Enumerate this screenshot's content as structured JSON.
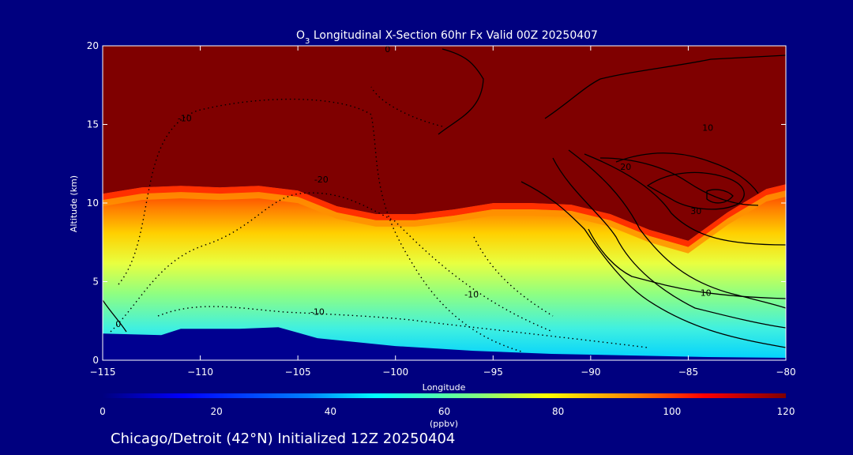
{
  "chart_data": {
    "type": "heatmap",
    "title_prefix": "O",
    "title_subscript": "3",
    "title_rest": " Longitudinal X-Section 60hr  Fx Valid 00Z 20250407",
    "xlabel": "Longitude",
    "ylabel": "Altitude (km)",
    "xlim": [
      -115,
      -80
    ],
    "ylim": [
      0,
      20
    ],
    "x_ticks": [
      -115,
      -110,
      -105,
      -100,
      -95,
      -90,
      -85,
      -80
    ],
    "x_tick_labels": [
      "−115",
      "−110",
      "−105",
      "−100",
      "−95",
      "−90",
      "−85",
      "−80"
    ],
    "y_ticks": [
      0,
      5,
      10,
      15,
      20
    ],
    "y_tick_labels": [
      "0",
      "5",
      "10",
      "15",
      "20"
    ],
    "colorbar": {
      "label": "(ppbv)",
      "range": [
        0,
        120
      ],
      "ticks": [
        0,
        20,
        40,
        60,
        80,
        100,
        120
      ],
      "tick_labels": [
        "0",
        "20",
        "40",
        "60",
        "80",
        "100",
        "120"
      ]
    },
    "colormap": [
      "#00007f",
      "#0000ff",
      "#0080ff",
      "#00ffff",
      "#80ff80",
      "#ffff00",
      "#ff8000",
      "#ff0000",
      "#7f0000"
    ],
    "tropopause_lon": [
      -115,
      -113,
      -111,
      -109,
      -107,
      -105,
      -103,
      -101,
      -99,
      -97,
      -95,
      -93,
      -91,
      -89,
      -87,
      -85,
      -83,
      -81,
      -80
    ],
    "tropopause_alt": [
      10.6,
      11.0,
      11.1,
      11.0,
      11.1,
      10.8,
      9.8,
      9.3,
      9.3,
      9.6,
      10.0,
      10.0,
      9.9,
      9.3,
      8.3,
      7.6,
      9.4,
      10.9,
      11.2
    ],
    "surface_lon": [
      -115,
      -112,
      -111,
      -108,
      -106,
      -104,
      -100,
      -96,
      -92,
      -88,
      -84,
      -80
    ],
    "surface_alt": [
      1.7,
      1.6,
      2.0,
      2.0,
      2.1,
      1.4,
      0.9,
      0.6,
      0.4,
      0.3,
      0.2,
      0.15
    ],
    "contour_labels": [
      {
        "text": "0",
        "lon": -114.2,
        "alt": 2.1
      },
      {
        "text": "-10",
        "lon": -110.8,
        "alt": 15.2
      },
      {
        "text": "-20",
        "lon": -103.8,
        "alt": 11.3
      },
      {
        "text": "-10",
        "lon": -96.1,
        "alt": 4.0
      },
      {
        "text": "-10",
        "lon": -104.0,
        "alt": 2.9
      },
      {
        "text": "10",
        "lon": -84.0,
        "alt": 14.6
      },
      {
        "text": "20",
        "lon": -88.2,
        "alt": 12.1
      },
      {
        "text": "30",
        "lon": -84.6,
        "alt": 9.3
      },
      {
        "text": "10",
        "lon": -84.1,
        "alt": 4.1
      },
      {
        "text": "0",
        "lon": -100.4,
        "alt": 19.6
      }
    ]
  },
  "footer": {
    "location_text": "Chicago/Detroit (42°N) Initialized 12Z 20250404"
  }
}
